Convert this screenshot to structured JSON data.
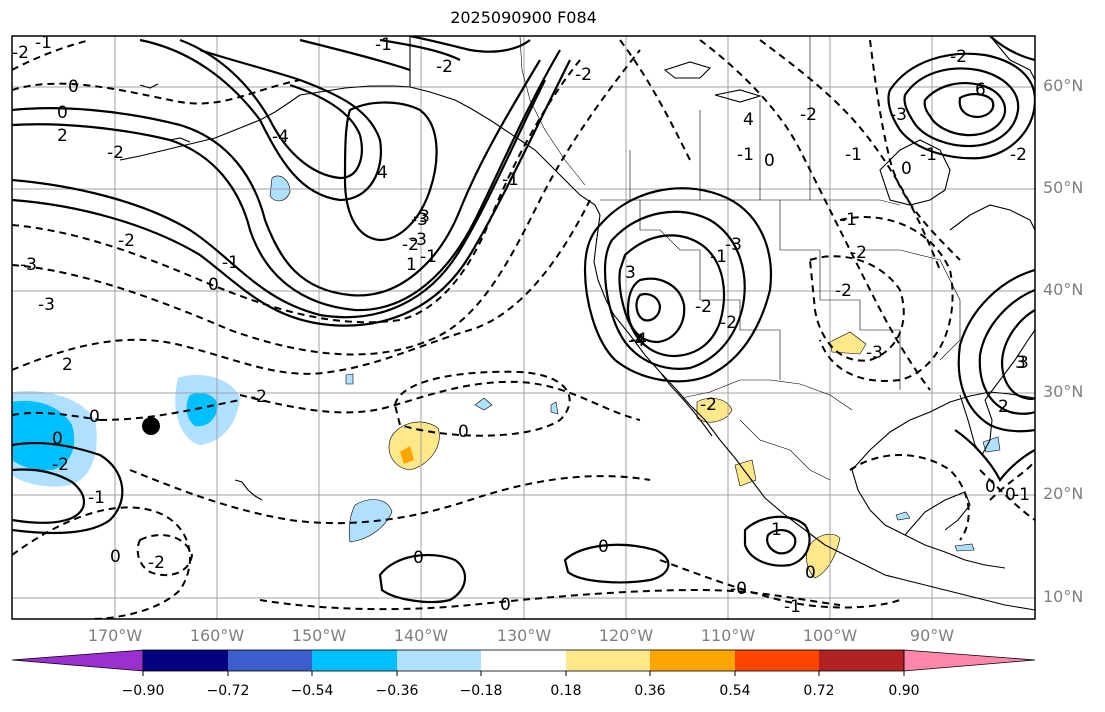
{
  "title": "2025090900 F084",
  "lat_labels": [
    "60°N",
    "50°N",
    "40°N",
    "30°N",
    "20°N",
    "10°N"
  ],
  "lon_labels": [
    "170°W",
    "160°W",
    "150°W",
    "140°W",
    "130°W",
    "120°W",
    "110°W",
    "100°W",
    "90°W"
  ],
  "contour_labels": [
    "-1",
    "-2",
    "0",
    "-1",
    "-2",
    "0",
    "2",
    "-2",
    "4",
    "-3",
    "-3",
    "-2",
    "-1",
    "0",
    "-2",
    "-1",
    "1",
    "2",
    "0",
    "-4",
    "-4",
    "3",
    "-2",
    "-1",
    "-1",
    "-2",
    "0",
    "-1",
    "-3",
    "4",
    "6",
    "-2",
    "-3",
    "-2",
    "-2",
    "3",
    "2",
    "0",
    "-3",
    "-2",
    "-2",
    "-2",
    "0",
    "0",
    "-1",
    "-2",
    "-1",
    "0",
    "0",
    "-2",
    "-3",
    "-2",
    "0",
    "-2",
    "-1",
    "0",
    "1",
    "0",
    "-1",
    "0",
    "0",
    "-0",
    "-1",
    "3",
    "-1",
    "-3",
    "-3",
    "-4"
  ],
  "colorbar": {
    "ticks": [
      "−0.90",
      "−0.72",
      "−0.54",
      "−0.36",
      "−0.18",
      "0.18",
      "0.36",
      "0.54",
      "0.72",
      "0.90"
    ],
    "colors": [
      "#9b30d0",
      "#000080",
      "#3a5fcd",
      "#00bfff",
      "#b0e0ff",
      "#ffffff",
      "#ffe88a",
      "#ffa500",
      "#ff4500",
      "#b22222",
      "#ff88aa"
    ]
  },
  "colors": {
    "frame": "#000000",
    "grid": "#a0a0a0",
    "label_gray": "#7f7f7f"
  }
}
